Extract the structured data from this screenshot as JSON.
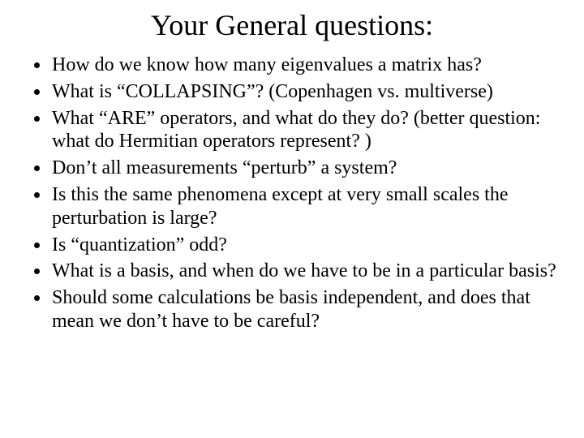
{
  "title": "Your General questions:",
  "title_fontsize": 36,
  "body_fontsize": 24,
  "font_family": "Times New Roman",
  "text_color": "#000000",
  "background_color": "#ffffff",
  "bullets": [
    "How do we know how many eigenvalues a matrix has?",
    "What is “COLLAPSING”?  (Copenhagen vs. multiverse)",
    "What “ARE” operators, and what do they do? (better question: what do Hermitian operators represent? )",
    "Don’t all measurements “perturb” a system?",
    "Is this the same phenomena except at very small scales the perturbation is large?",
    "Is “quantization” odd?",
    "What is a basis, and when do we have to be in a particular basis?",
    "Should some calculations be basis independent, and does that mean we don’t have to be careful?"
  ]
}
